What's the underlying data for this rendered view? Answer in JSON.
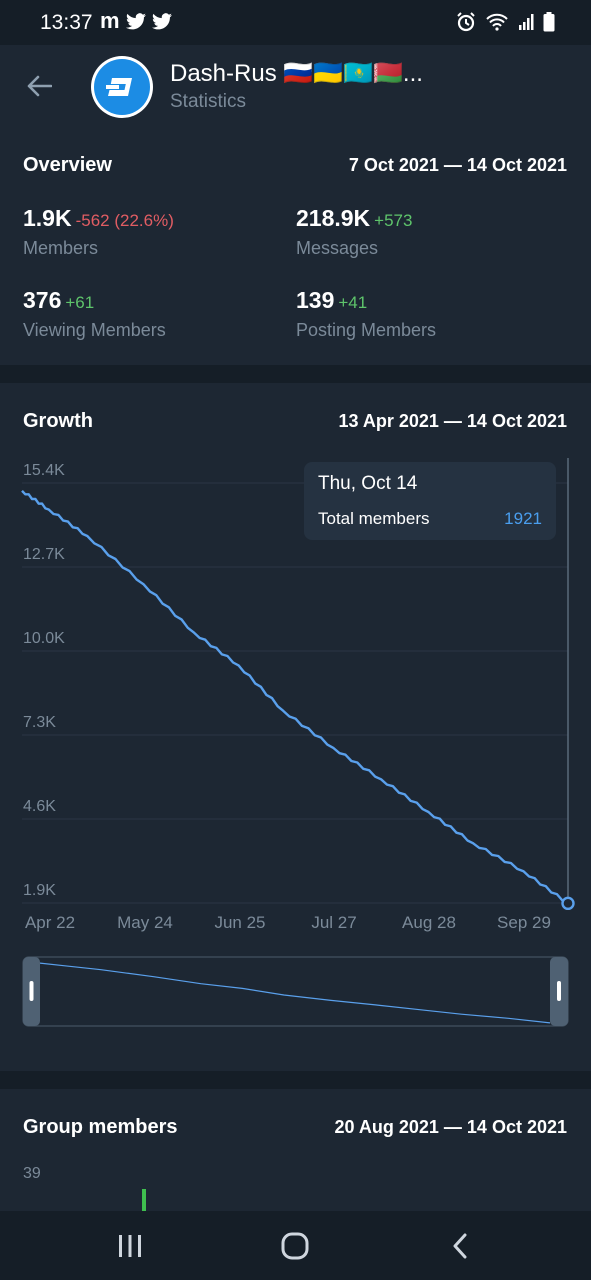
{
  "status_bar": {
    "time": "13:37",
    "left_icons": [
      "m-app-icon",
      "twitter-icon",
      "twitter-icon"
    ],
    "m_glyph": "m",
    "right_icons": [
      "alarm-icon",
      "wifi-icon",
      "signal-icon",
      "battery-icon"
    ]
  },
  "header": {
    "back_icon": "back-arrow-icon",
    "avatar_icon": "dash-logo-icon",
    "title": "Dash-Rus 🇷🇺🇺🇦🇰🇿🇧🇾...",
    "subtitle": "Statistics"
  },
  "overview": {
    "title": "Overview",
    "range": "7 Oct 2021 — 14 Oct 2021",
    "members": {
      "value": "1.9K",
      "delta": "-562 (22.6%)",
      "label": "Members"
    },
    "messages": {
      "value": "218.9K",
      "delta": "+573",
      "label": "Messages"
    },
    "viewing": {
      "value": "376",
      "delta": "+61",
      "label": "Viewing Members"
    },
    "posting": {
      "value": "139",
      "delta": "+41",
      "label": "Posting Members"
    }
  },
  "growth": {
    "title": "Growth",
    "range": "13 Apr 2021 — 14 Oct 2021",
    "tooltip": {
      "date": "Thu, Oct 14",
      "label": "Total members",
      "value": "1921"
    }
  },
  "chart_data": {
    "type": "line",
    "x_ticks": [
      "Apr 22",
      "May 24",
      "Jun 25",
      "Jul 27",
      "Aug 28",
      "Sep 29"
    ],
    "y_ticks": [
      "15.4K",
      "12.7K",
      "10.0K",
      "7.3K",
      "4.6K",
      "1.9K"
    ],
    "ylim": [
      1900,
      15400
    ],
    "x": [
      "2021-04-13",
      "2021-04-22",
      "2021-05-05",
      "2021-05-24",
      "2021-06-10",
      "2021-06-25",
      "2021-07-10",
      "2021-07-27",
      "2021-08-12",
      "2021-08-28",
      "2021-09-12",
      "2021-09-29",
      "2021-10-14"
    ],
    "values": [
      15150,
      14550,
      13700,
      12150,
      10600,
      9550,
      8100,
      6900,
      5900,
      4850,
      3850,
      2950,
      1921
    ],
    "highlight": {
      "x": "2021-10-14",
      "value": 1921
    },
    "line_color": "#5aa0ec",
    "grid": true
  },
  "group_members": {
    "title": "Group members",
    "range": "20 Aug 2021 — 14 Oct 2021",
    "y_tick": "39",
    "bar_color": "#3fbf4f"
  },
  "nav_bar": {
    "icons": [
      "recent-apps-icon",
      "home-icon",
      "back-icon"
    ]
  }
}
